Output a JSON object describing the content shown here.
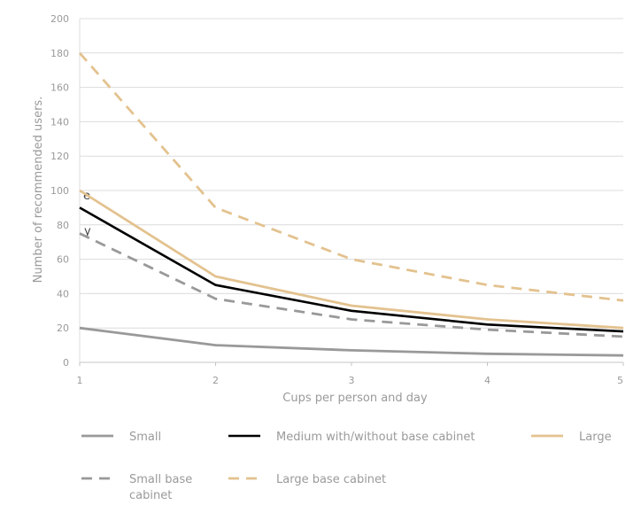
{
  "chart_data": {
    "type": "line",
    "xlabel": "Cups per person and day",
    "ylabel": "Number of recommended users.",
    "x": [
      1,
      2,
      3,
      4,
      5
    ],
    "xlim": [
      1,
      5
    ],
    "ylim": [
      0,
      200
    ],
    "x_ticks": [
      "1",
      "2",
      "3",
      "4",
      "5"
    ],
    "y_ticks": [
      "0",
      "20",
      "40",
      "60",
      "80",
      "100",
      "120",
      "140",
      "160",
      "180",
      "200"
    ],
    "grid": "horizontal",
    "legend_position": "bottom",
    "series": [
      {
        "name": "Small",
        "values": [
          20,
          10,
          7,
          5,
          4
        ],
        "color": "#999999",
        "style": "solid"
      },
      {
        "name": "Medium with/without base cabinet",
        "values": [
          90,
          45,
          30,
          22,
          18
        ],
        "color": "#000000",
        "style": "solid"
      },
      {
        "name": "Large",
        "values": [
          100,
          50,
          33,
          25,
          20
        ],
        "color": "#e3c28f",
        "style": "solid"
      },
      {
        "name": "Small base cabinet",
        "values": [
          75,
          37,
          25,
          19,
          15
        ],
        "color": "#999999",
        "style": "dashed"
      },
      {
        "name": "Large base cabinet",
        "values": [
          180,
          90,
          60,
          45,
          36
        ],
        "color": "#e3c28f",
        "style": "dashed"
      }
    ],
    "legend": [
      {
        "lines": [
          "Small"
        ],
        "series": 0
      },
      {
        "lines": [
          "Medium with/without base cabinet"
        ],
        "series": 1
      },
      {
        "lines": [
          "Large"
        ],
        "series": 2
      },
      {
        "lines": [
          "Small base",
          "cabinet"
        ],
        "series": 3
      },
      {
        "lines": [
          "Large base cabinet"
        ],
        "series": 4
      }
    ],
    "clipped_text": [
      "e",
      "y"
    ]
  }
}
